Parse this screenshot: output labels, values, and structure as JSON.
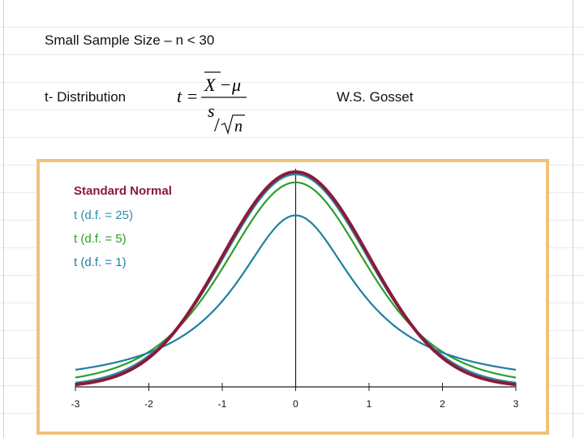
{
  "slide": {
    "heading": "Small Sample Size – n < 30",
    "distribution_label": "t- Distribution",
    "author": "W.S. Gosset",
    "formula": {
      "lhs": "t",
      "equals": "=",
      "numerator_x": "X",
      "numerator_minus": "−",
      "numerator_mu": "μ",
      "denominator_s": "s",
      "denominator_slash": "/",
      "denominator_n": "n"
    }
  },
  "colors": {
    "frame": "#f0c27c",
    "standard_normal": "#8b1a3a",
    "df25": "#2a8fa3",
    "df5": "#2e9e2a",
    "df1": "#1f7fa0",
    "axis": "#222222"
  },
  "chart_data": {
    "type": "line",
    "title": "",
    "xlabel": "",
    "ylabel": "",
    "xlim": [
      -3,
      3
    ],
    "ylim": [
      0,
      0.4
    ],
    "x_ticks": [
      -3,
      -2,
      -1,
      0,
      1,
      2,
      3
    ],
    "x_tick_labels": [
      "-3",
      "-2",
      "-1",
      "0",
      "1",
      "2",
      "3"
    ],
    "grid": false,
    "legend_position": "top-left",
    "series": [
      {
        "name": "Standard Normal",
        "distribution": "normal",
        "color": "#8b1a3a"
      },
      {
        "name": "t (d.f. = 25)",
        "distribution": "t",
        "df": 25,
        "color": "#2a8fa3"
      },
      {
        "name": "t (d.f. = 5)",
        "distribution": "t",
        "df": 5,
        "color": "#2e9e2a"
      },
      {
        "name": "t (d.f. = 1)",
        "distribution": "t",
        "df": 1,
        "color": "#1f7fa0"
      }
    ]
  }
}
